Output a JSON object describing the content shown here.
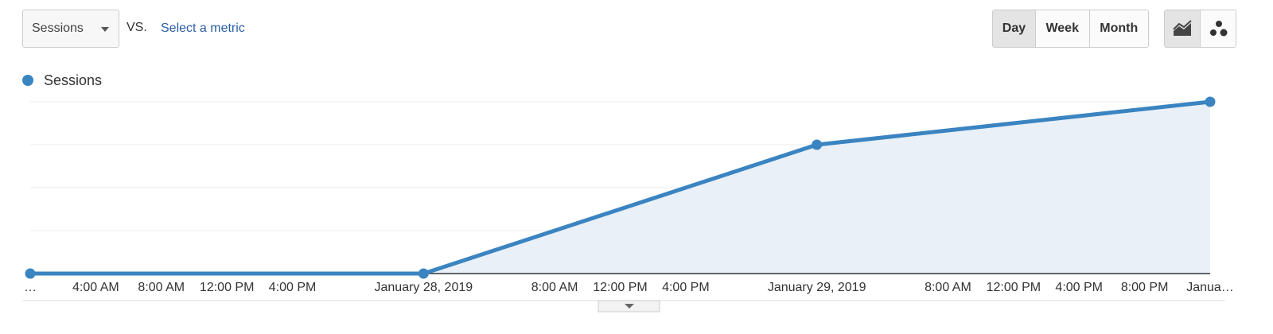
{
  "controls": {
    "metric": "Sessions",
    "vs": "VS.",
    "select_metric": "Select a metric",
    "periods": [
      "Day",
      "Week",
      "Month"
    ],
    "active_period": 0
  },
  "chart_data": {
    "type": "area",
    "x": [
      0,
      24,
      48,
      72
    ],
    "series": [
      {
        "name": "Sessions",
        "color": "#3a84c1",
        "fill": "#e9f0f8",
        "values": [
          0,
          0,
          3,
          4
        ]
      }
    ],
    "xlim": [
      0,
      72
    ],
    "xticks": [
      {
        "value": 0,
        "label": "…"
      },
      {
        "value": 4,
        "label": "4:00 AM"
      },
      {
        "value": 8,
        "label": "8:00 AM"
      },
      {
        "value": 12,
        "label": "12:00 PM"
      },
      {
        "value": 16,
        "label": "4:00 PM"
      },
      {
        "value": 24,
        "label": "January 28, 2019"
      },
      {
        "value": 32,
        "label": "8:00 AM"
      },
      {
        "value": 36,
        "label": "12:00 PM"
      },
      {
        "value": 40,
        "label": "4:00 PM"
      },
      {
        "value": 48,
        "label": "January 29, 2019"
      },
      {
        "value": 56,
        "label": "8:00 AM"
      },
      {
        "value": 60,
        "label": "12:00 PM"
      },
      {
        "value": 64,
        "label": "4:00 PM"
      },
      {
        "value": 68,
        "label": "8:00 PM"
      },
      {
        "value": 72,
        "label": "Janua…"
      }
    ],
    "ylim": [
      0,
      4
    ],
    "yticks": [
      0,
      1,
      2,
      3,
      4
    ],
    "grid": true
  }
}
